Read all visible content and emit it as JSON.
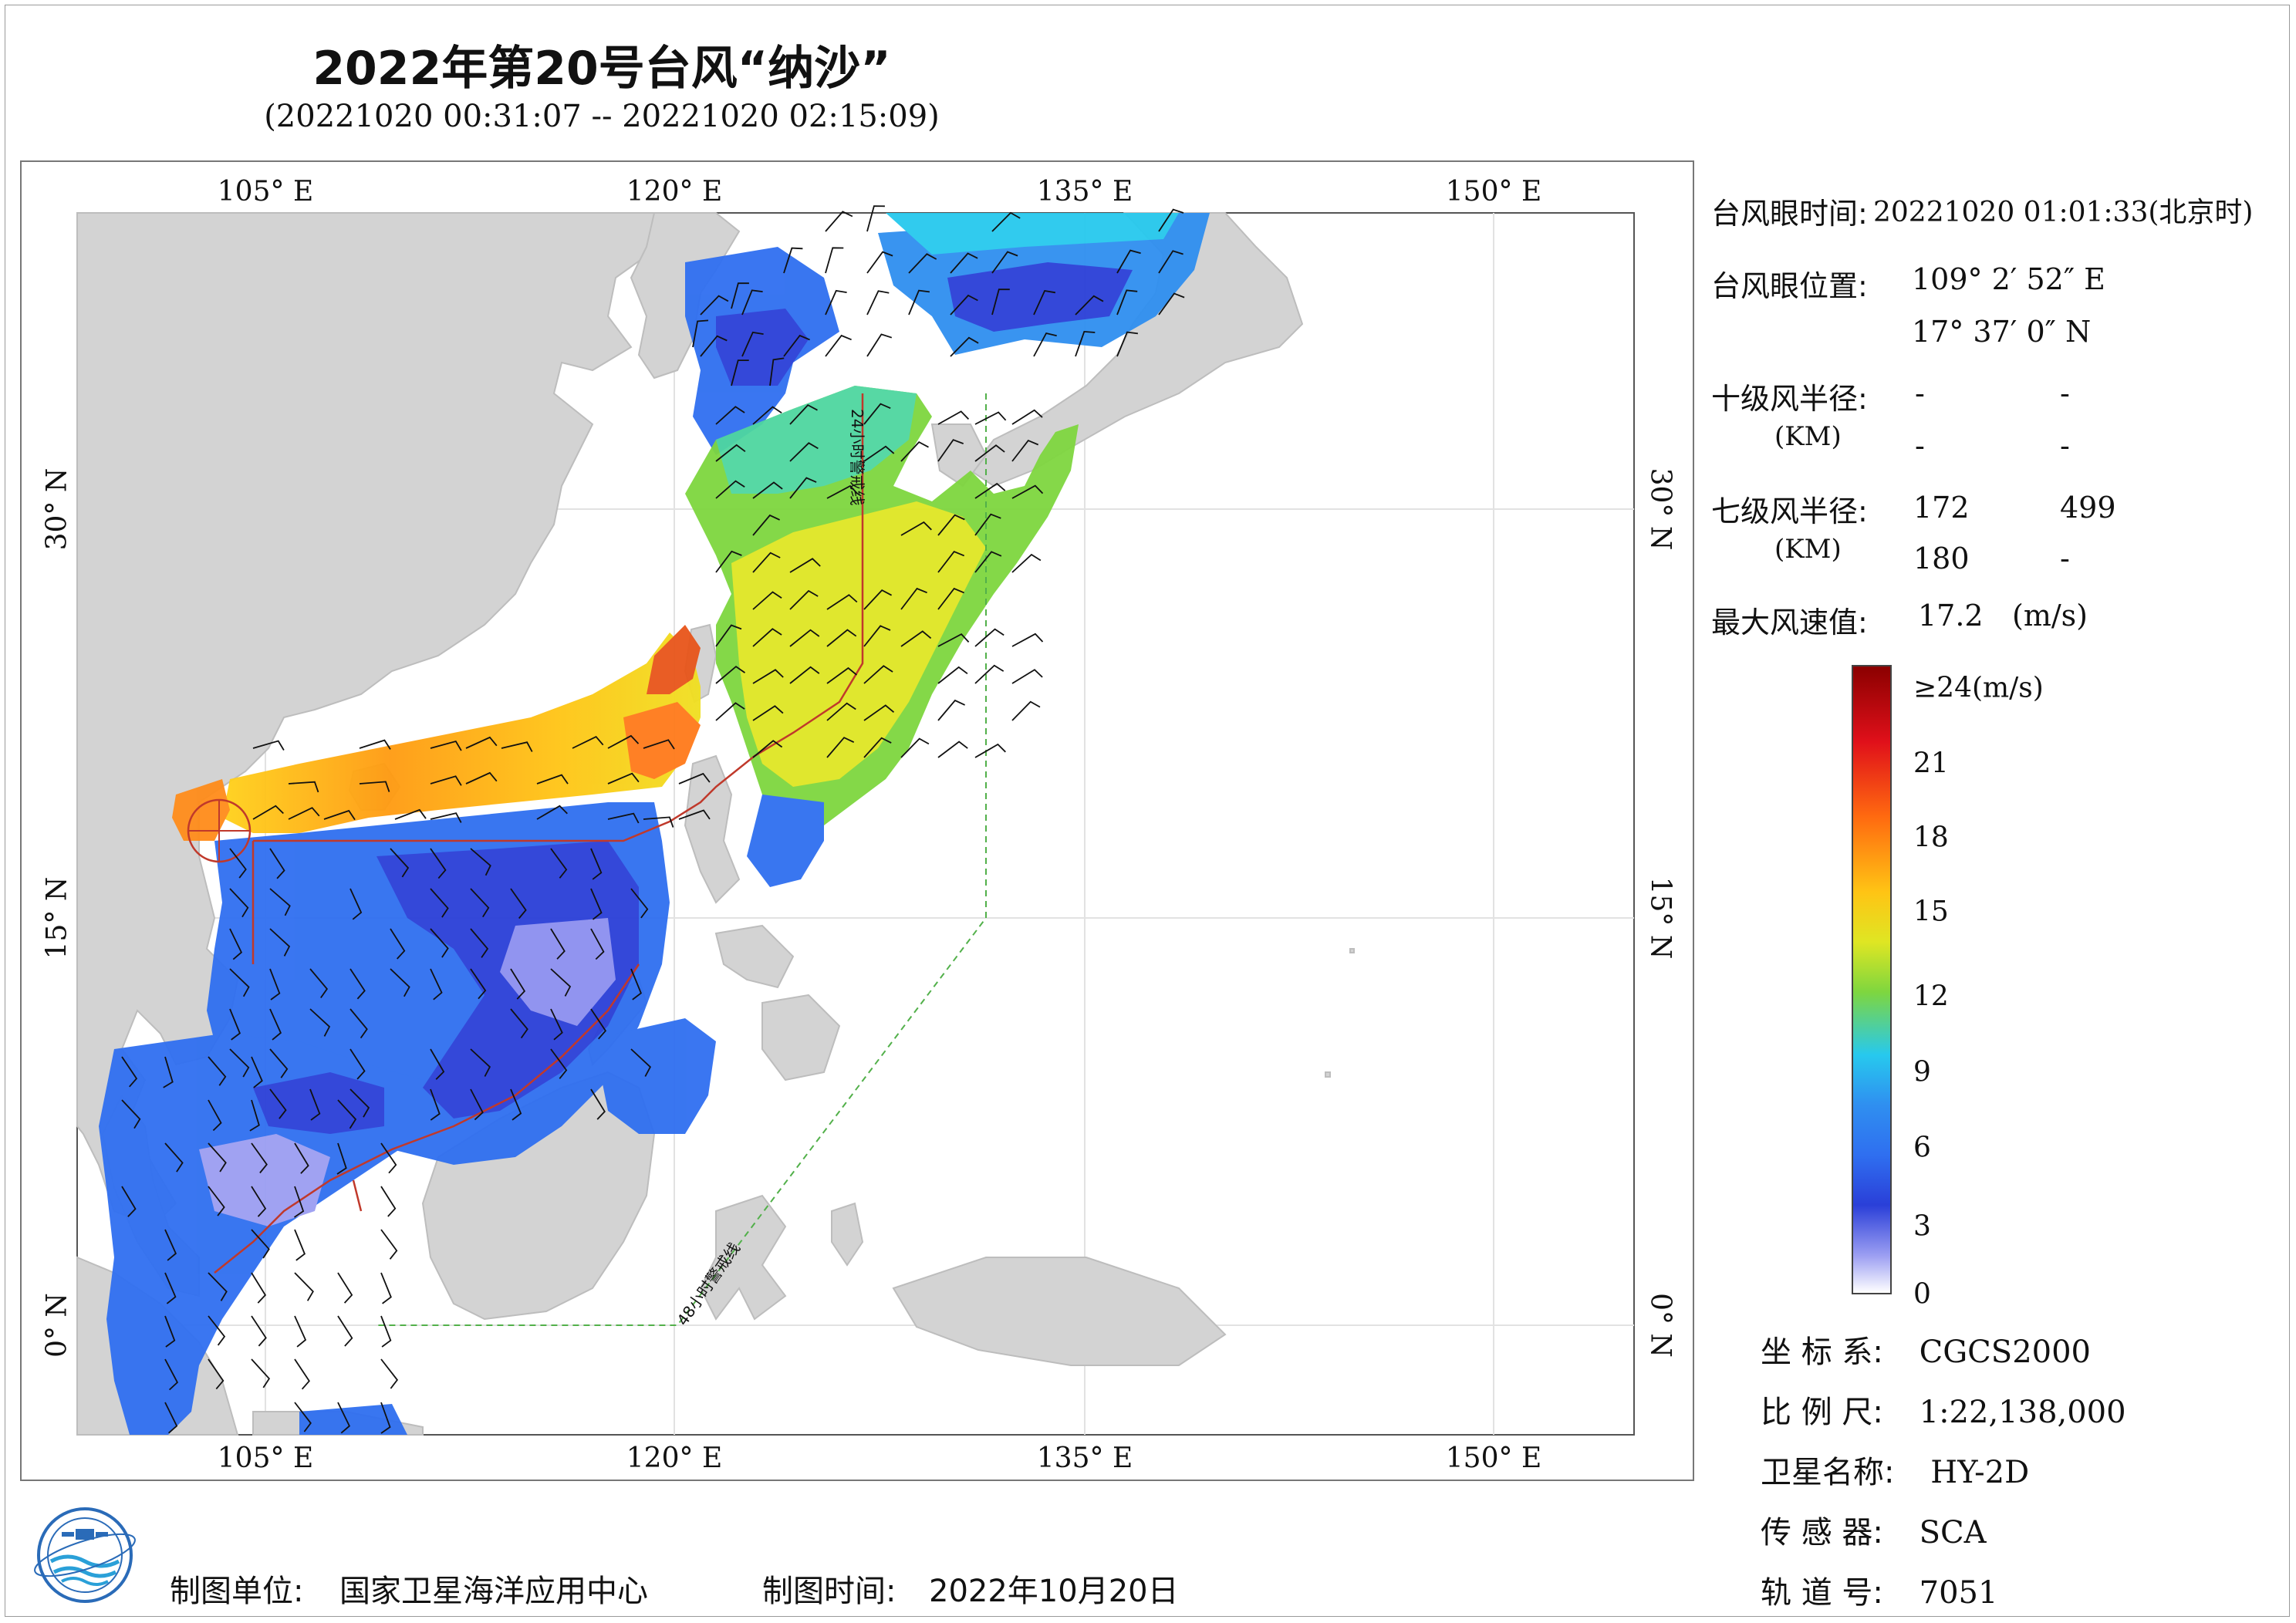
{
  "title": "2022年第20号台风“纳沙”",
  "subtitle": "(20221020 00:31:07 -- 20221020 02:15:09)",
  "map": {
    "lon_ticks": [
      "105° E",
      "120° E",
      "135° E",
      "150° E"
    ],
    "lat_ticks": [
      "30° N",
      "15° N",
      "0° N"
    ],
    "annot_24h": "24小时警戒线",
    "annot_48h": "48小时警戒线"
  },
  "typhoon_info": {
    "eye_time_label": "台风眼时间:",
    "eye_time_value": "20221020 01:01:33(北京时)",
    "eye_pos_label": "台风眼位置:",
    "eye_lon": "109° 2′ 52″ E",
    "eye_lat": "17° 37′ 0″ N",
    "r10_label": "十级风半径:",
    "r10_unit": "(KM)",
    "r10_values": [
      "-",
      "-",
      "-",
      "-"
    ],
    "r7_label": "七级风半径:",
    "r7_unit": "(KM)",
    "r7_values": [
      "172",
      "499",
      "180",
      "-"
    ],
    "max_wind_label": "最大风速值:",
    "max_wind_value": "17.2",
    "max_wind_unit": "(m/s)"
  },
  "colorbar": {
    "top_label": "≥24(m/s)",
    "labels": [
      "21",
      "18",
      "15",
      "12",
      "9",
      "6",
      "3",
      "0"
    ]
  },
  "footer": {
    "org_label": "制图单位:",
    "org_value": "国家卫星海洋应用中心",
    "time_label": "制图时间:",
    "time_value": "2022年10月20日"
  },
  "meta": {
    "crs_label": "坐 标 系:",
    "crs_value": "CGCS2000",
    "scale_label": "比 例 尺:",
    "scale_value": "1:22,138,000",
    "sat_label": "卫星名称:",
    "sat_value": "HY-2D",
    "sensor_label": "传 感 器:",
    "sensor_value": "SCA",
    "orbit_label": "轨 道 号:",
    "orbit_value": "7051"
  },
  "colors": {
    "land": "#d3d3d3",
    "ocean": "#ffffff",
    "warning_24h": "#c0392b",
    "warning_48h": "#52b04a",
    "grid": "#e2e2e2"
  }
}
